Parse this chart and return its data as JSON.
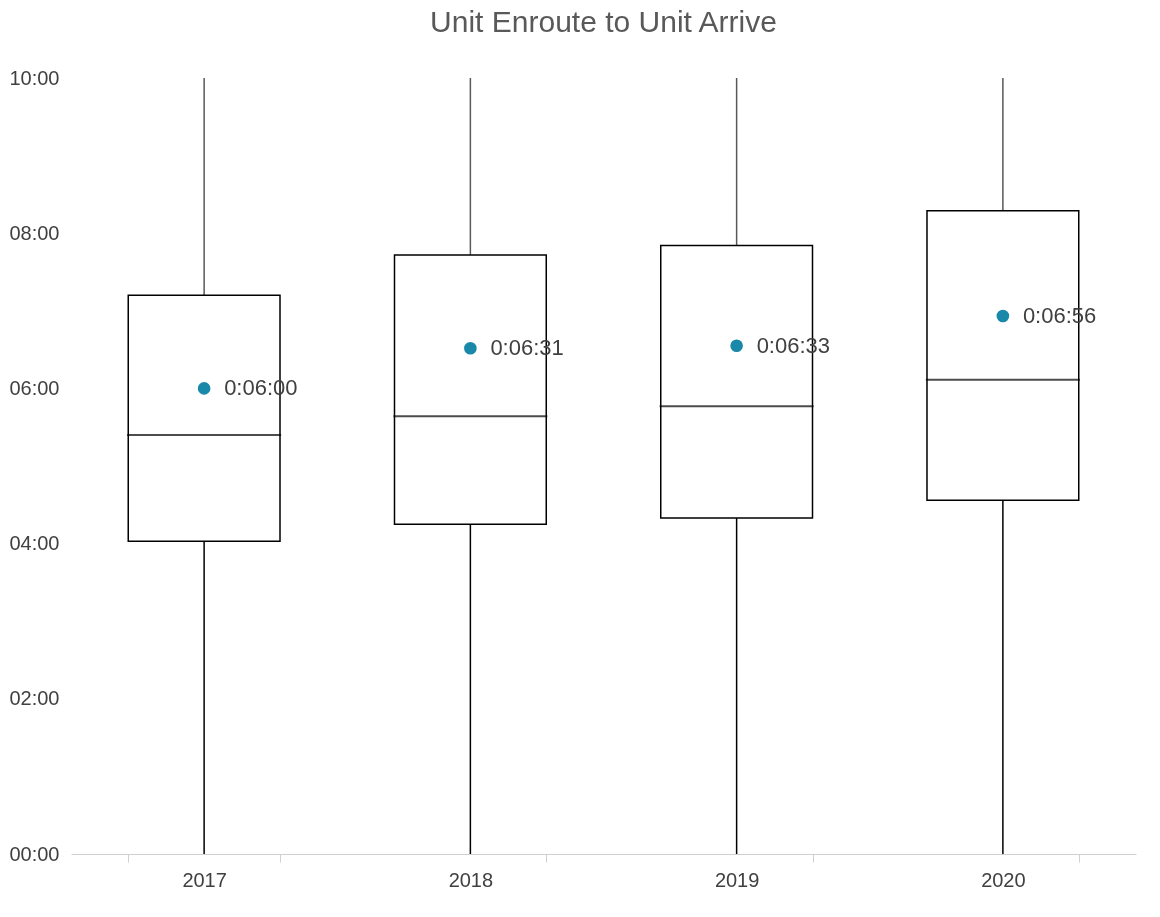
{
  "chart_data": {
    "type": "box",
    "title": "Unit Enroute to Unit Arrive",
    "categories": [
      "2017",
      "2018",
      "2019",
      "2020"
    ],
    "boxes": [
      {
        "low": 0,
        "q1": 4.03,
        "median": 5.4,
        "q3": 7.2,
        "high": 10
      },
      {
        "low": 0,
        "q1": 4.25,
        "median": 5.64,
        "q3": 7.72,
        "high": 10
      },
      {
        "low": 0,
        "q1": 4.33,
        "median": 5.77,
        "q3": 7.84,
        "high": 10
      },
      {
        "low": 0,
        "q1": 4.56,
        "median": 6.11,
        "q3": 8.29,
        "high": 10
      }
    ],
    "series": [
      {
        "type": "scatter",
        "color": "#1a88a8",
        "values": [
          6.0,
          6.517,
          6.55,
          6.933
        ],
        "value_labels": [
          "0:06:00",
          "0:06:31",
          "0:06:33",
          "0:06:56"
        ]
      }
    ],
    "ylim": [
      0,
      10
    ],
    "yticks": [
      {
        "value": 0,
        "label": "00:00"
      },
      {
        "value": 2,
        "label": "02:00"
      },
      {
        "value": 4,
        "label": "04:00"
      },
      {
        "value": 6,
        "label": "06:00"
      },
      {
        "value": 8,
        "label": "08:00"
      },
      {
        "value": 10,
        "label": "10:00"
      }
    ]
  }
}
